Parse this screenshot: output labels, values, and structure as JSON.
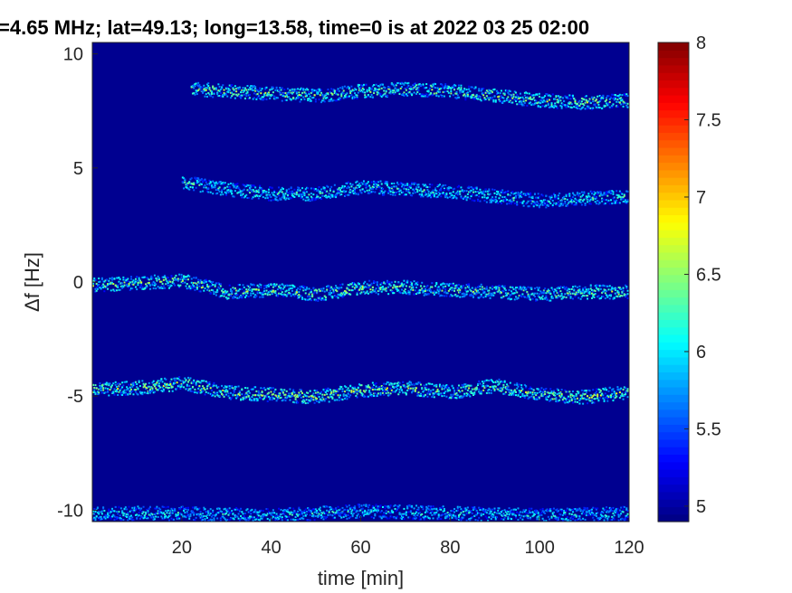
{
  "chart_data": {
    "type": "heatmap",
    "title": "=4.65 MHz;  lat=49.13; long=13.58, time=0 is at 2022 03 25 02:00",
    "xlabel": "time [min]",
    "ylabel": "Δf [Hz]",
    "xlim": [
      0,
      120
    ],
    "ylim": [
      -10.5,
      10.5
    ],
    "x_ticks": [
      20,
      40,
      60,
      80,
      100,
      120
    ],
    "x_tick_labels": [
      "20",
      "40",
      "60",
      "80",
      "100",
      "120"
    ],
    "y_ticks": [
      10,
      5,
      0,
      -5,
      -10
    ],
    "y_tick_labels": [
      "10",
      "5",
      "0",
      "-5",
      "-10"
    ],
    "colorbar": {
      "colormap": "jet",
      "range": [
        4.9,
        8
      ],
      "ticks": [
        8,
        7.5,
        7,
        6.5,
        6,
        5.5,
        5
      ],
      "tick_labels": [
        "8",
        "7.5",
        "7",
        "6.5",
        "6",
        "5.5",
        "5"
      ]
    },
    "background_value": 4.95,
    "traces": [
      {
        "start": 22,
        "end": 120,
        "x": [
          22,
          30,
          40,
          50,
          60,
          70,
          80,
          90,
          100,
          110,
          120
        ],
        "y": [
          8.5,
          8.4,
          8.3,
          8.2,
          8.4,
          8.5,
          8.4,
          8.2,
          8.0,
          7.9,
          8.0
        ],
        "peak": 6.8
      },
      {
        "start": 20,
        "end": 120,
        "x": [
          20,
          30,
          40,
          50,
          60,
          70,
          80,
          90,
          100,
          110,
          120
        ],
        "y": [
          4.4,
          4.1,
          3.9,
          3.9,
          4.2,
          4.1,
          4.0,
          3.8,
          3.6,
          3.7,
          3.8
        ],
        "peak": 6.5
      },
      {
        "start": 0,
        "end": 120,
        "x": [
          0,
          10,
          20,
          30,
          40,
          50,
          60,
          70,
          80,
          90,
          100,
          110,
          120
        ],
        "y": [
          -0.1,
          0.0,
          0.1,
          -0.4,
          -0.3,
          -0.5,
          -0.2,
          -0.2,
          -0.3,
          -0.4,
          -0.5,
          -0.4,
          -0.4
        ],
        "peak": 6.8
      },
      {
        "start": 0,
        "end": 120,
        "x": [
          0,
          10,
          20,
          30,
          40,
          50,
          60,
          70,
          80,
          90,
          100,
          110,
          120
        ],
        "y": [
          -4.7,
          -4.6,
          -4.4,
          -4.8,
          -4.9,
          -5.0,
          -4.7,
          -4.6,
          -4.8,
          -4.5,
          -4.9,
          -5.0,
          -4.8
        ],
        "peak": 6.9
      },
      {
        "start": 0,
        "end": 120,
        "x": [
          0,
          20,
          40,
          60,
          80,
          100,
          120
        ],
        "y": [
          -10.1,
          -10.1,
          -10.2,
          -10.0,
          -10.1,
          -10.2,
          -10.1
        ],
        "peak": 6.4
      }
    ]
  }
}
